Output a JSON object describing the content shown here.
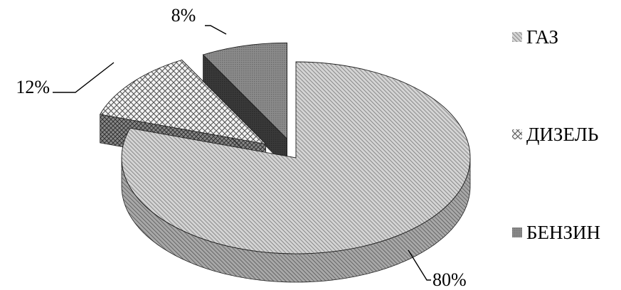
{
  "chart_data": {
    "type": "pie",
    "title": "",
    "slices": [
      {
        "name": "ГАЗ",
        "value": 80,
        "label": "80%",
        "pattern": "hatch-fine"
      },
      {
        "name": "ДИЗЕЛЬ",
        "value": 12,
        "label": "12%",
        "pattern": "crosshatch"
      },
      {
        "name": "БЕНЗИН",
        "value": 8,
        "label": "8%",
        "pattern": "dark-gray"
      }
    ],
    "legend": {
      "position": "right",
      "entries": [
        "ГАЗ",
        "ДИЗЕЛЬ",
        "БЕНЗИН"
      ]
    },
    "three_d": true,
    "exploded": true
  }
}
